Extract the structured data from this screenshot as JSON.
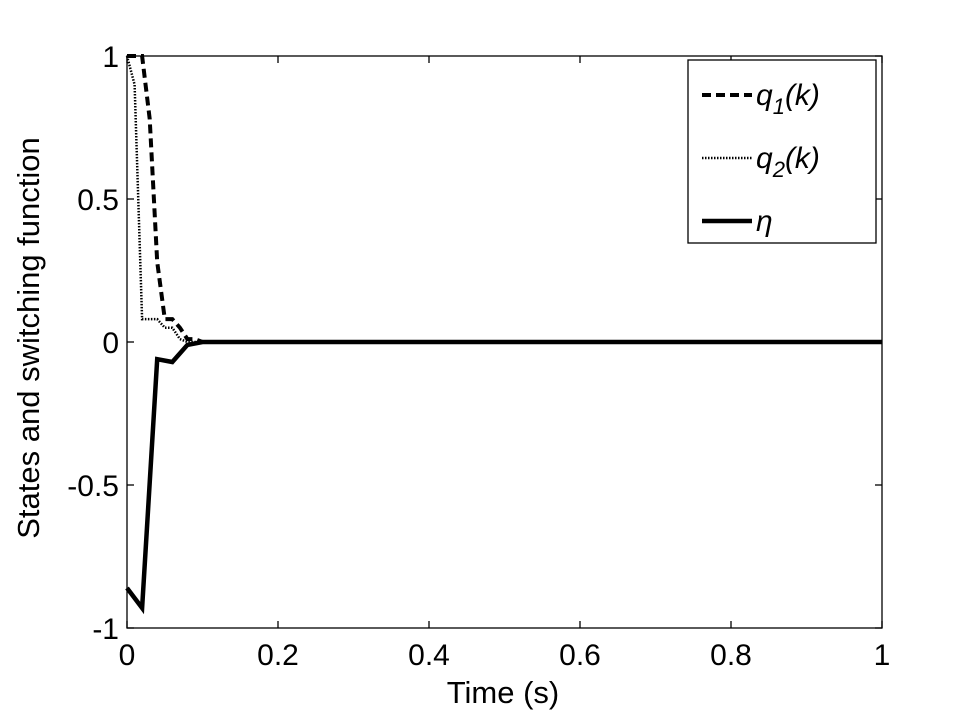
{
  "chart_data": {
    "type": "line",
    "title": "",
    "xlabel": "Time (s)",
    "ylabel": "States and switching function",
    "xlim": [
      0,
      1
    ],
    "ylim": [
      -1,
      1
    ],
    "xticks": [
      0,
      0.2,
      0.4,
      0.6,
      0.8,
      1
    ],
    "xtick_labels": [
      "0",
      "0.2",
      "0.4",
      "0.6",
      "0.8",
      "1"
    ],
    "yticks": [
      -1,
      -0.5,
      0,
      0.5,
      1
    ],
    "ytick_labels": [
      "-1",
      "-0.5",
      "0",
      "0.5",
      "1"
    ],
    "grid": false,
    "legend_position": "top-right",
    "series": [
      {
        "name": "q1(k)",
        "label_main": "q",
        "label_sub": "1",
        "label_tail": "(k)",
        "style": "dashed",
        "color": "#000000",
        "x": [
          0,
          0.02,
          0.03,
          0.04,
          0.05,
          0.06,
          0.07,
          0.08,
          0.09,
          0.1,
          0.2,
          0.4,
          0.6,
          0.8,
          1
        ],
        "y": [
          1,
          1,
          0.78,
          0.28,
          0.08,
          0.08,
          0.05,
          0.01,
          0.01,
          0.0,
          0.0,
          0.0,
          0.0,
          0.0,
          0.0
        ]
      },
      {
        "name": "q2(k)",
        "label_main": "q",
        "label_sub": "2",
        "label_tail": "(k)",
        "style": "dotted",
        "color": "#000000",
        "x": [
          0,
          0.01,
          0.02,
          0.03,
          0.04,
          0.05,
          0.06,
          0.07,
          0.08,
          0.09,
          0.1,
          0.2,
          0.4,
          0.6,
          0.8,
          1
        ],
        "y": [
          1,
          0.9,
          0.08,
          0.08,
          0.08,
          0.05,
          0.05,
          0.01,
          0.0,
          0.0,
          0.0,
          0.0,
          0.0,
          0.0,
          0.0,
          0.0
        ]
      },
      {
        "name": "η",
        "label_main": "η",
        "label_sub": "",
        "label_tail": "",
        "style": "solid",
        "color": "#000000",
        "x": [
          0,
          0.02,
          0.04,
          0.06,
          0.08,
          0.1,
          0.2,
          0.4,
          0.6,
          0.8,
          1
        ],
        "y": [
          -0.86,
          -0.93,
          -0.06,
          -0.07,
          -0.01,
          0.0,
          0.0,
          0.0,
          0.0,
          0.0,
          0.0
        ]
      }
    ]
  }
}
